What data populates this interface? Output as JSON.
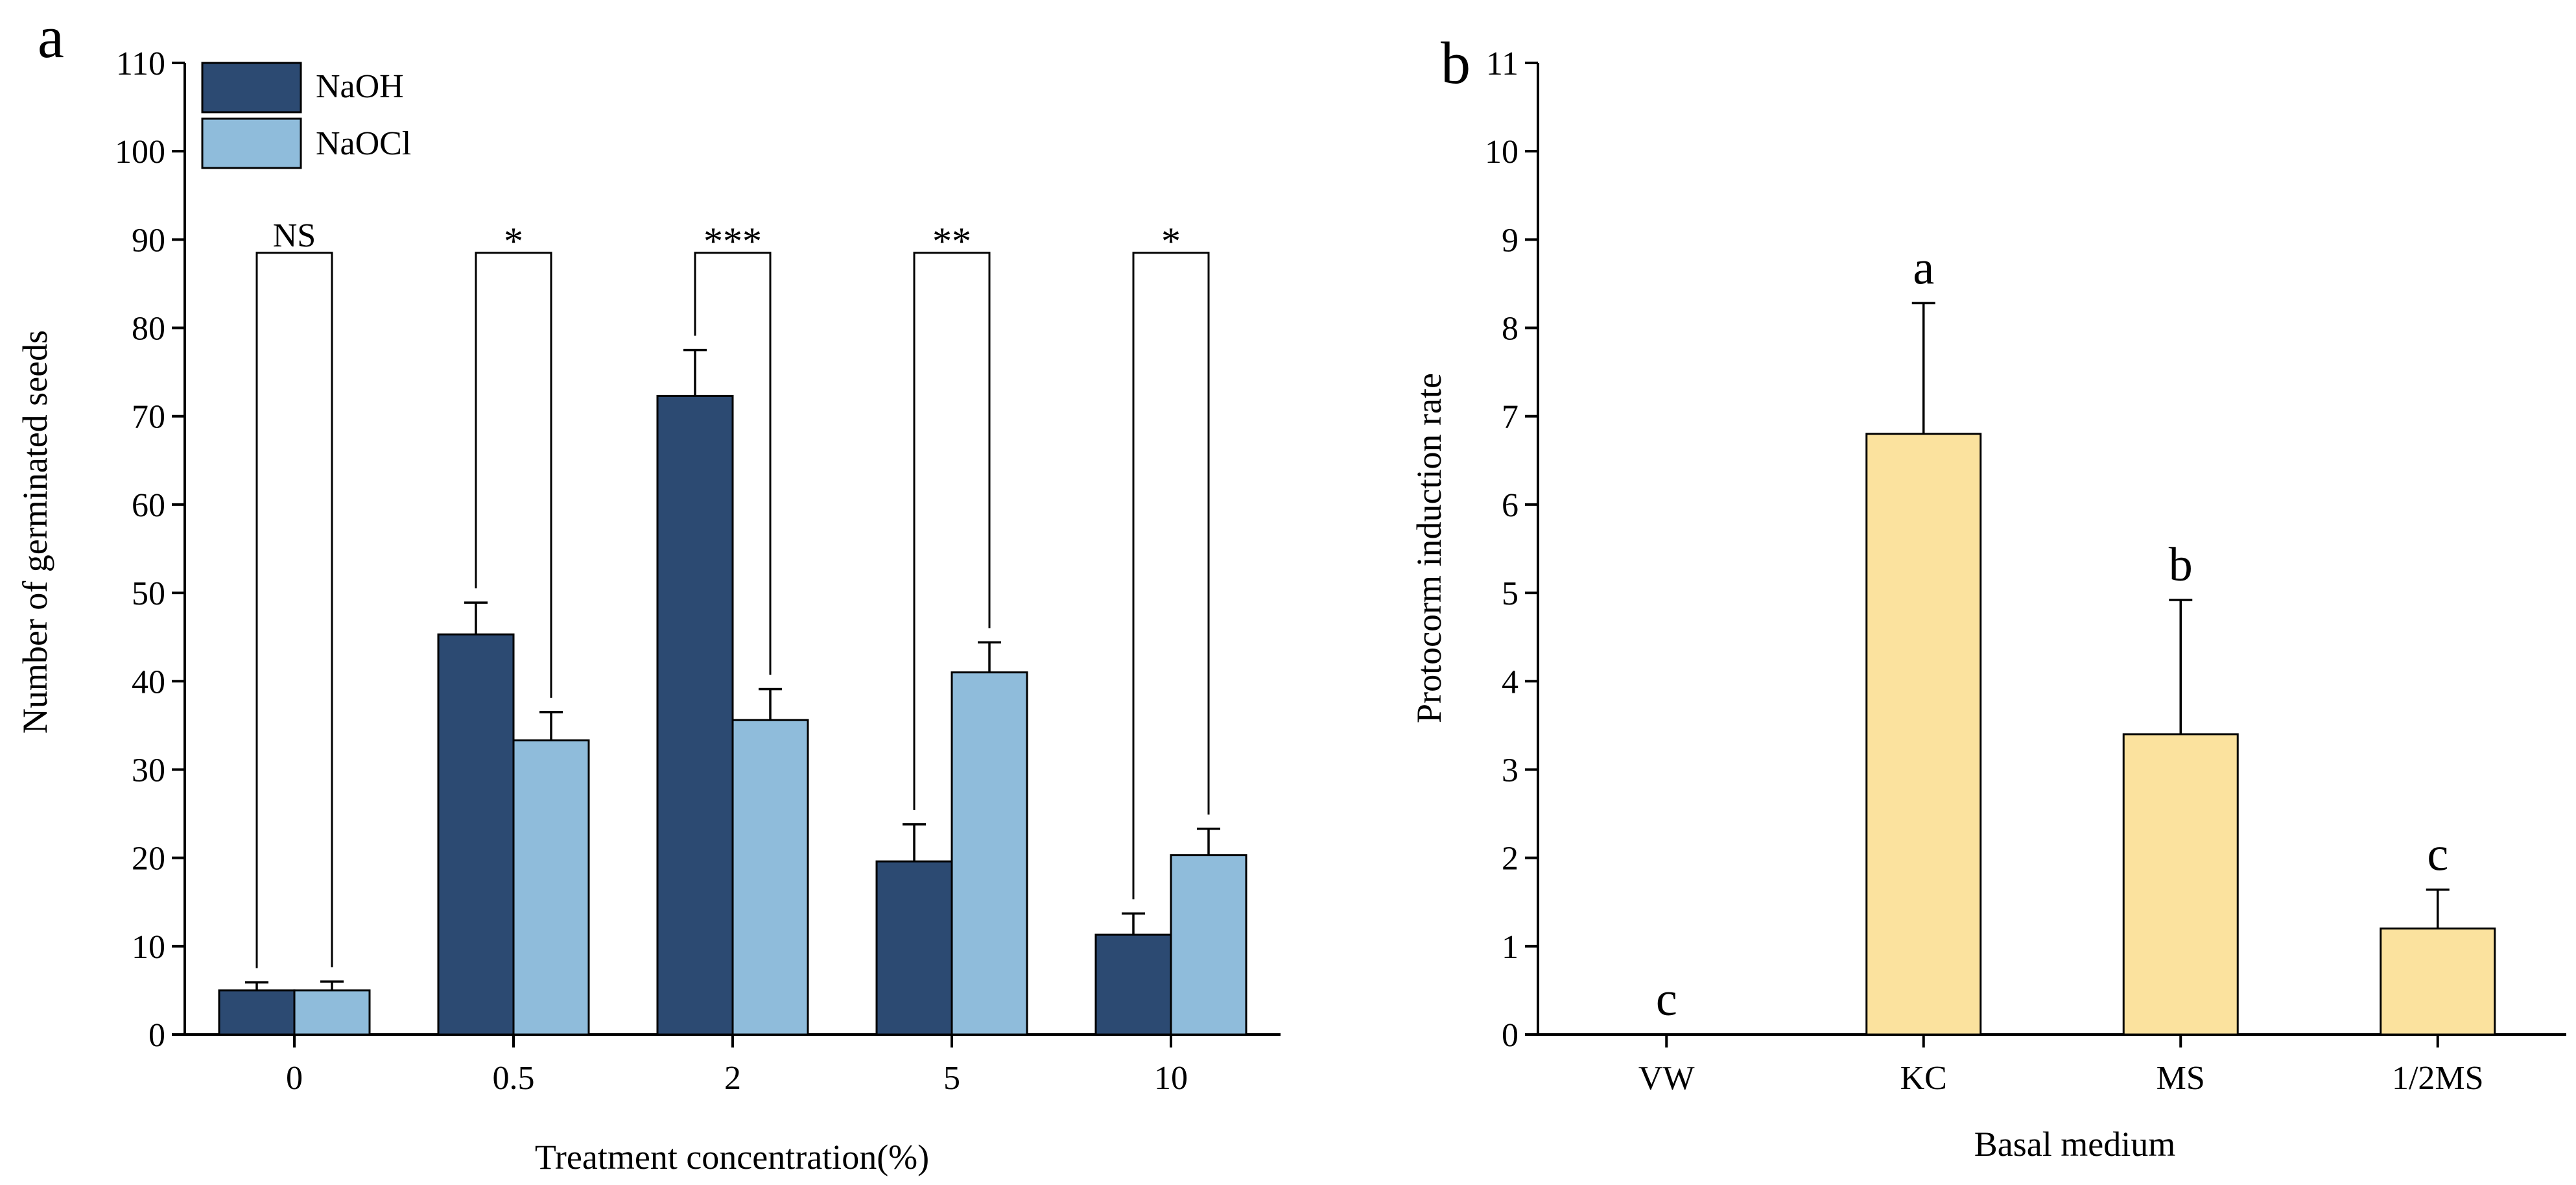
{
  "chart_data": [
    {
      "panel": "a",
      "type": "bar",
      "title": "",
      "xlabel": "Treatment concentration(%)",
      "ylabel": "Number of germinated seeds",
      "ylim": [
        0,
        110
      ],
      "yticks": [
        0,
        10,
        20,
        30,
        40,
        50,
        60,
        70,
        80,
        90,
        100,
        110
      ],
      "categories": [
        "0",
        "0.5",
        "2",
        "5",
        "10"
      ],
      "series": [
        {
          "name": "NaOH",
          "color": "#2c4a72",
          "values": [
            5,
            45.3,
            72.3,
            19.6,
            11.3
          ],
          "errors": [
            0.9,
            3.6,
            5.2,
            4.2,
            2.4
          ]
        },
        {
          "name": "NaOCl",
          "color": "#8fbcdb",
          "values": [
            5,
            33.3,
            35.6,
            41,
            20.3
          ],
          "errors": [
            1,
            3.2,
            3.5,
            3.4,
            3
          ]
        }
      ],
      "legend_position": "top-left",
      "significance": [
        {
          "category": "0",
          "label": "NS"
        },
        {
          "category": "0.5",
          "label": "*"
        },
        {
          "category": "2",
          "label": "***"
        },
        {
          "category": "5",
          "label": "**"
        },
        {
          "category": "10",
          "label": "*"
        }
      ]
    },
    {
      "panel": "b",
      "type": "bar",
      "title": "",
      "xlabel": "Basal medium",
      "ylabel": "Protocorm induction rate",
      "ylim": [
        0,
        11
      ],
      "yticks": [
        0,
        1,
        2,
        3,
        4,
        5,
        6,
        7,
        8,
        9,
        10,
        11
      ],
      "categories": [
        "VW",
        "KC",
        "MS",
        "1/2MS"
      ],
      "values": [
        0,
        6.8,
        3.4,
        1.2
      ],
      "errors": [
        0,
        1.48,
        1.52,
        0.44
      ],
      "letters": [
        "c",
        "a",
        "b",
        "c"
      ],
      "color": "#fbe29e"
    }
  ]
}
